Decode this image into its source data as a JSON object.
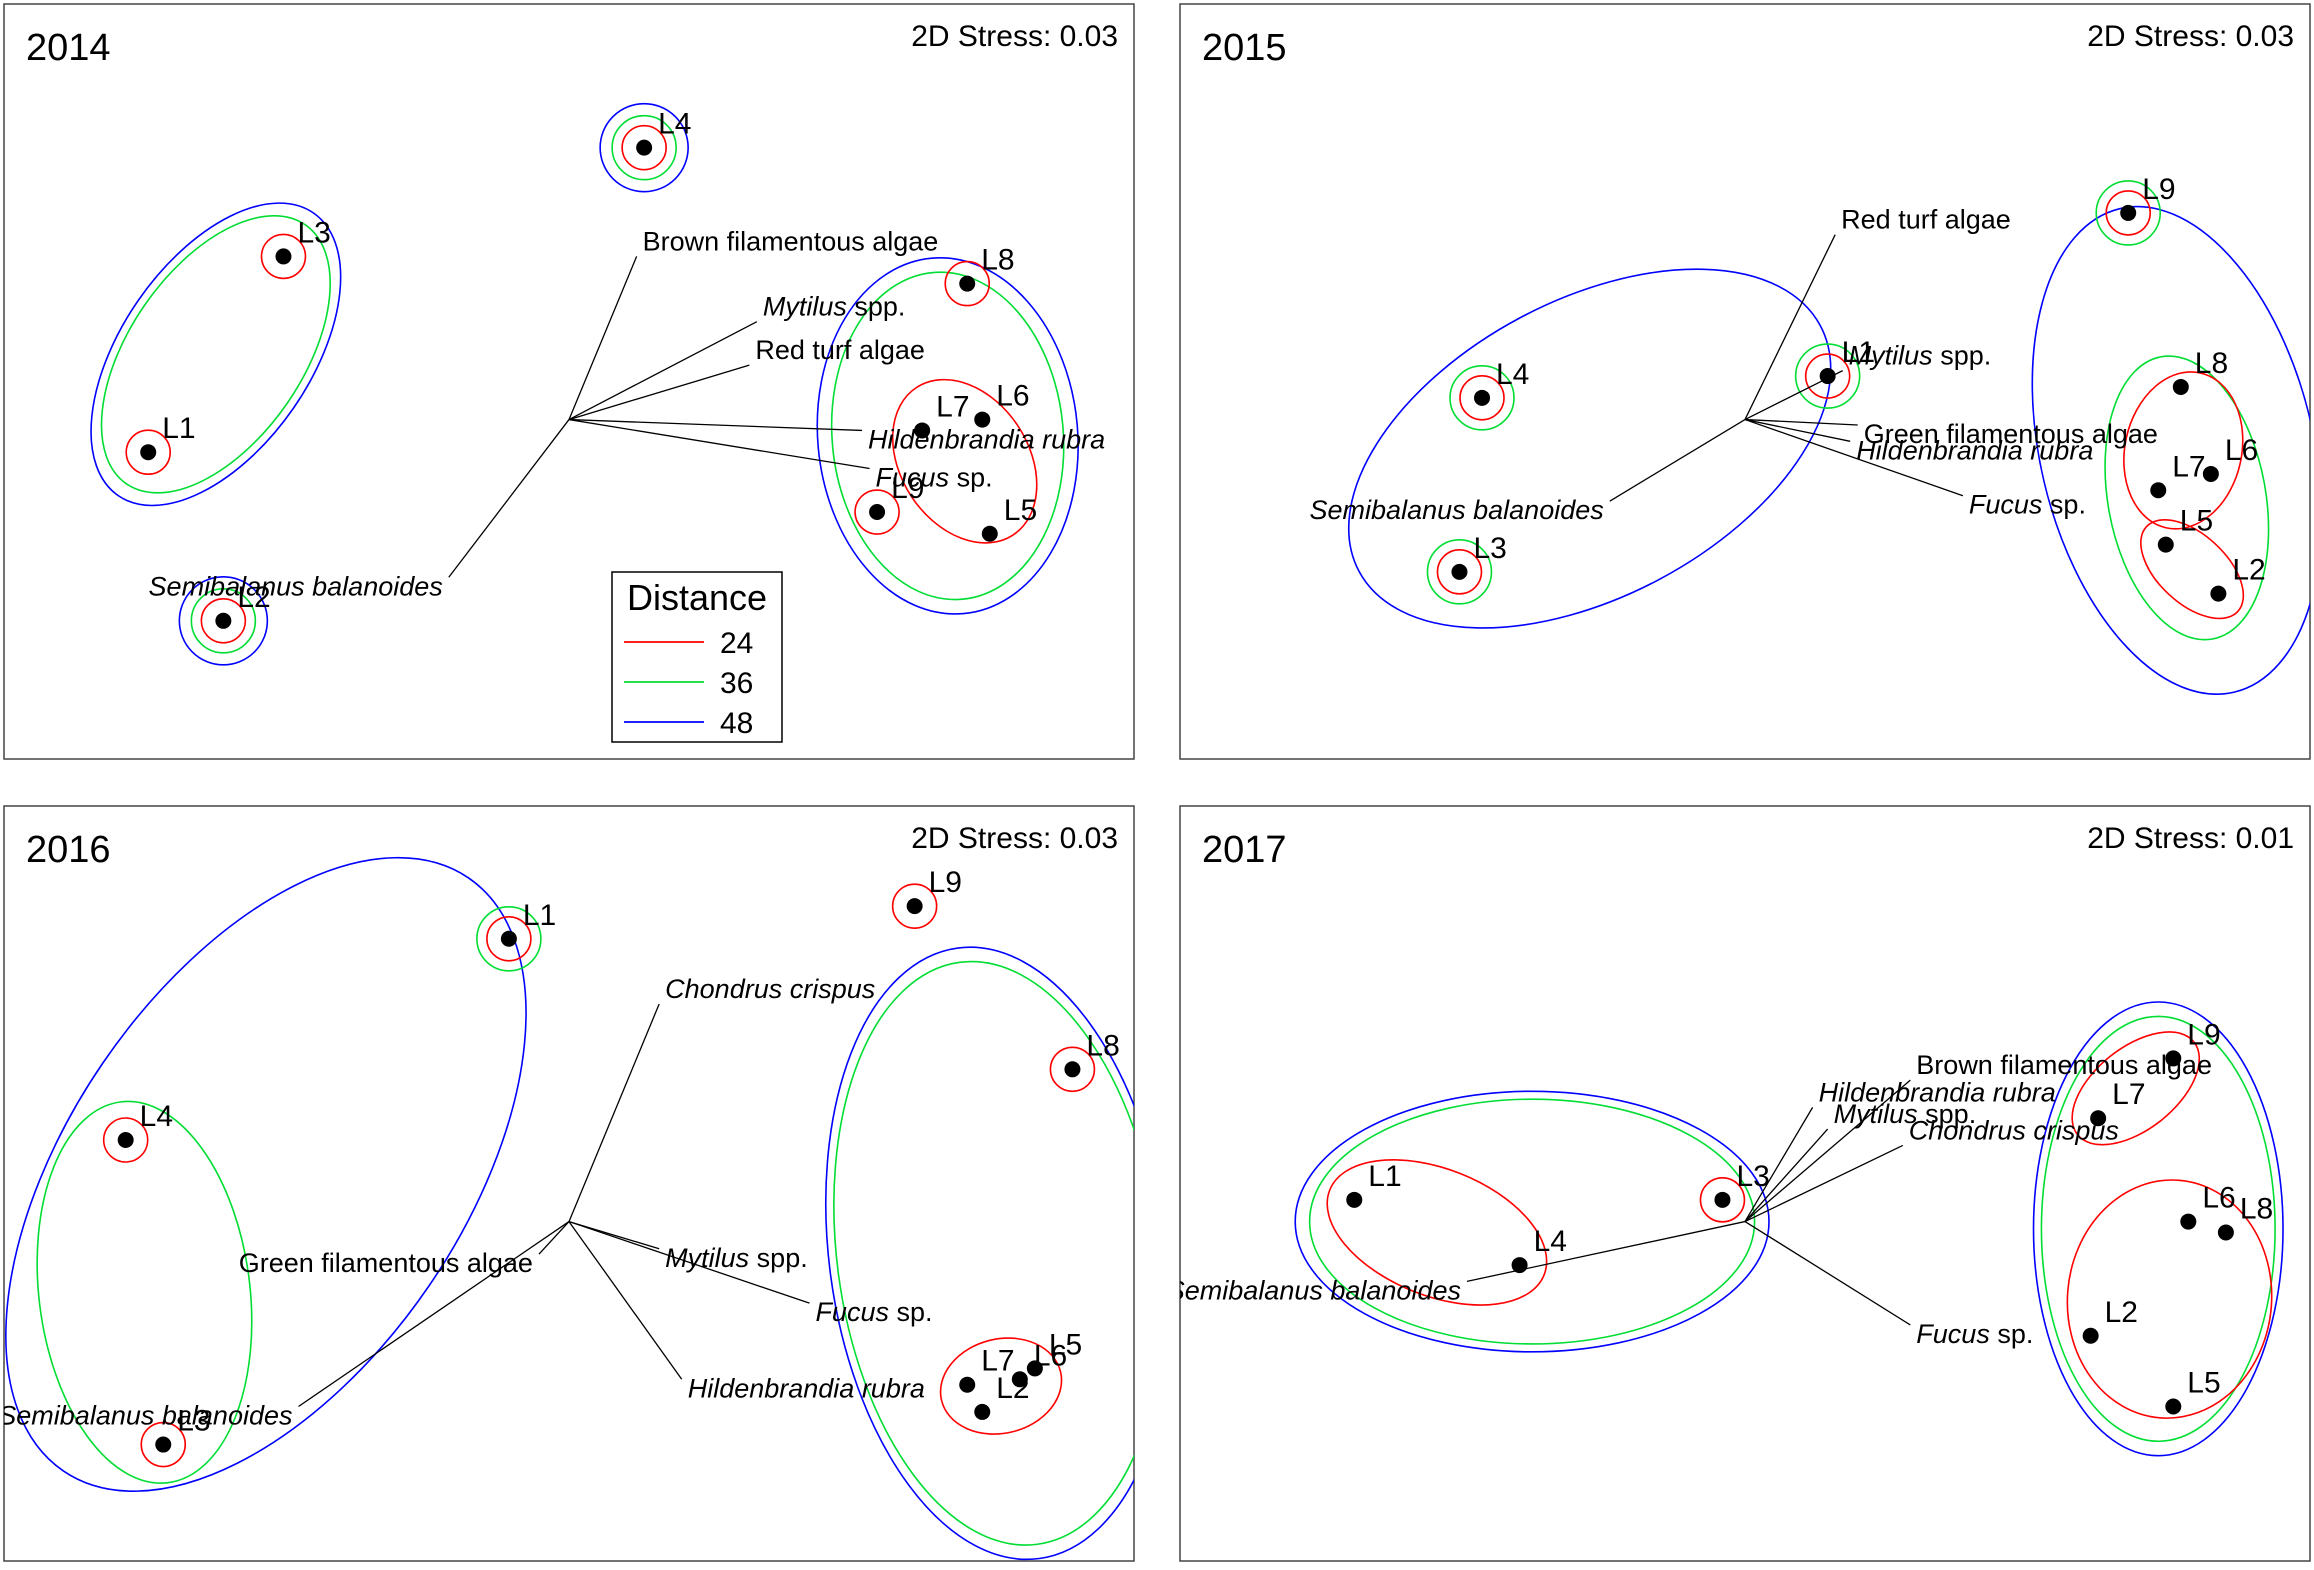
{
  "colors": {
    "d24": "#ff0000",
    "d36": "#00dd33",
    "d48": "#0000ff",
    "frame": "#444444",
    "vector": "#000000",
    "point": "#000000"
  },
  "legend": {
    "title": "Distance",
    "entries": [
      {
        "label": "24",
        "color": "#ff0000"
      },
      {
        "label": "36",
        "color": "#00dd33"
      },
      {
        "label": "48",
        "color": "#0000ff"
      }
    ]
  },
  "chart_data": [
    {
      "type": "scatter",
      "title": "2014",
      "stress_text": "2D Stress: 0.03",
      "points": [
        {
          "label": "L1",
          "x": -2.8,
          "y": -0.3
        },
        {
          "label": "L2",
          "x": -2.3,
          "y": -1.85
        },
        {
          "label": "L3",
          "x": -1.9,
          "y": 1.5
        },
        {
          "label": "L4",
          "x": 0.5,
          "y": 2.5
        },
        {
          "label": "L5",
          "x": 2.8,
          "y": -1.05
        },
        {
          "label": "L6",
          "x": 2.75,
          "y": 0.0
        },
        {
          "label": "L7",
          "x": 2.35,
          "y": -0.1
        },
        {
          "label": "L8",
          "x": 2.65,
          "y": 1.25
        },
        {
          "label": "L9",
          "x": 2.05,
          "y": -0.85
        }
      ],
      "vectors": [
        {
          "label": "Brown filamentous algae",
          "x": 0.45,
          "y": 1.5
        },
        {
          "label": "Mytilus spp.",
          "italic": "Mytilus",
          "rest": " spp.",
          "x": 1.25,
          "y": 0.9
        },
        {
          "label": "Red turf algae",
          "x": 1.2,
          "y": 0.5
        },
        {
          "label": "Hildenbrandia rubra",
          "italic": "Hildenbrandia rubra",
          "rest": "",
          "x": 1.95,
          "y": -0.1
        },
        {
          "label": "Fucus sp.",
          "italic": "Fucus",
          "rest": " sp.",
          "x": 2.0,
          "y": -0.45
        },
        {
          "label": "Semibalanus balanoides",
          "italic": "Semibalanus balanoides",
          "rest": "",
          "x": -0.8,
          "y": -1.45
        }
      ],
      "contours": {
        "d24": [
          [
            "L1"
          ],
          [
            "L2"
          ],
          [
            "L3"
          ],
          [
            "L4"
          ],
          [
            "L8"
          ],
          [
            "L9"
          ],
          [
            "L5",
            "L6",
            "L7"
          ]
        ],
        "d36": [
          [
            "L1",
            "L3"
          ],
          [
            "L2"
          ],
          [
            "L4"
          ],
          [
            "L5",
            "L6",
            "L7",
            "L8",
            "L9"
          ]
        ],
        "d48": [
          [
            "L1",
            "L3"
          ],
          [
            "L2"
          ],
          [
            "L4"
          ],
          [
            "L5",
            "L6",
            "L7",
            "L8",
            "L9"
          ]
        ]
      },
      "show_legend": true
    },
    {
      "type": "scatter",
      "title": "2015",
      "stress_text": "2D Stress: 0.03",
      "points": [
        {
          "label": "L1",
          "x": 0.55,
          "y": 0.4
        },
        {
          "label": "L2",
          "x": 3.15,
          "y": -1.6
        },
        {
          "label": "L3",
          "x": -1.9,
          "y": -1.4
        },
        {
          "label": "L4",
          "x": -1.75,
          "y": 0.2
        },
        {
          "label": "L5",
          "x": 2.8,
          "y": -1.15
        },
        {
          "label": "L6",
          "x": 3.1,
          "y": -0.5
        },
        {
          "label": "L7",
          "x": 2.75,
          "y": -0.65
        },
        {
          "label": "L8",
          "x": 2.9,
          "y": 0.3
        },
        {
          "label": "L9",
          "x": 2.55,
          "y": 1.9
        }
      ],
      "vectors": [
        {
          "label": "Red turf algae",
          "x": 0.6,
          "y": 1.7
        },
        {
          "label": "Mytilus spp.",
          "italic": "Mytilus",
          "rest": " spp.",
          "x": 0.65,
          "y": 0.45
        },
        {
          "label": "Green filamentous algae",
          "x": 0.75,
          "y": -0.05
        },
        {
          "label": "Hildenbrandia rubra",
          "italic": "Hildenbrandia rubra",
          "rest": "",
          "x": 0.7,
          "y": -0.2
        },
        {
          "label": "Fucus sp.",
          "italic": "Fucus",
          "rest": " sp.",
          "x": 1.45,
          "y": -0.7
        },
        {
          "label": "Semibalanus balanoides",
          "italic": "Semibalanus balanoides",
          "rest": "",
          "x": -0.9,
          "y": -0.75
        }
      ],
      "contours": {
        "d24": [
          [
            "L1"
          ],
          [
            "L3"
          ],
          [
            "L4"
          ],
          [
            "L9"
          ],
          [
            "L6",
            "L7",
            "L8"
          ],
          [
            "L2",
            "L5"
          ]
        ],
        "d36": [
          [
            "L1"
          ],
          [
            "L3"
          ],
          [
            "L4"
          ],
          [
            "L9"
          ],
          [
            "L2",
            "L5",
            "L6",
            "L7",
            "L8"
          ]
        ],
        "d48": [
          [
            "L1",
            "L3",
            "L4"
          ],
          [
            "L2",
            "L5",
            "L6",
            "L7",
            "L8",
            "L9"
          ]
        ]
      },
      "show_legend": false
    },
    {
      "type": "scatter",
      "title": "2016",
      "stress_text": "2D Stress: 0.03",
      "points": [
        {
          "label": "L1",
          "x": -0.4,
          "y": 2.6
        },
        {
          "label": "L2",
          "x": 2.75,
          "y": -1.75
        },
        {
          "label": "L3",
          "x": -2.7,
          "y": -2.05
        },
        {
          "label": "L4",
          "x": -2.95,
          "y": 0.75
        },
        {
          "label": "L5",
          "x": 3.1,
          "y": -1.35
        },
        {
          "label": "L6",
          "x": 3.0,
          "y": -1.45
        },
        {
          "label": "L7",
          "x": 2.65,
          "y": -1.5
        },
        {
          "label": "L8",
          "x": 3.35,
          "y": 1.4
        },
        {
          "label": "L9",
          "x": 2.3,
          "y": 2.9
        }
      ],
      "vectors": [
        {
          "label": "Chondrus crispus",
          "italic": "Chondrus crispus",
          "rest": "",
          "x": 0.6,
          "y": 2.0
        },
        {
          "label": "Green filamentous algae",
          "x": -0.2,
          "y": -0.3
        },
        {
          "label": "Mytilus spp.",
          "italic": "Mytilus",
          "rest": " spp.",
          "x": 0.6,
          "y": -0.25
        },
        {
          "label": "Fucus sp.",
          "italic": "Fucus",
          "rest": " sp.",
          "x": 1.6,
          "y": -0.75
        },
        {
          "label": "Hildenbrandia rubra",
          "italic": "Hildenbrandia rubra",
          "rest": "",
          "x": 0.75,
          "y": -1.45
        },
        {
          "label": "Semibalanus balanoides",
          "italic": "Semibalanus balanoides",
          "rest": "",
          "x": -1.8,
          "y": -1.7
        }
      ],
      "contours": {
        "d24": [
          [
            "L1"
          ],
          [
            "L3"
          ],
          [
            "L4"
          ],
          [
            "L8"
          ],
          [
            "L9"
          ],
          [
            "L2",
            "L5",
            "L6",
            "L7"
          ]
        ],
        "d36": [
          [
            "L1"
          ],
          [
            "L3",
            "L4"
          ],
          [
            "L2",
            "L5",
            "L6",
            "L7",
            "L8",
            "L9"
          ]
        ],
        "d48": [
          [
            "L1",
            "L3",
            "L4"
          ],
          [
            "L2",
            "L5",
            "L6",
            "L7",
            "L8",
            "L9"
          ]
        ]
      },
      "show_legend": false
    },
    {
      "type": "scatter",
      "title": "2017",
      "stress_text": "2D Stress: 0.01",
      "points": [
        {
          "label": "L1",
          "x": -2.6,
          "y": 0.2
        },
        {
          "label": "L2",
          "x": 2.3,
          "y": -1.05
        },
        {
          "label": "L3",
          "x": -0.15,
          "y": 0.2
        },
        {
          "label": "L4",
          "x": -1.5,
          "y": -0.4
        },
        {
          "label": "L5",
          "x": 2.85,
          "y": -1.7
        },
        {
          "label": "L6",
          "x": 2.95,
          "y": 0.0
        },
        {
          "label": "L7",
          "x": 2.35,
          "y": 0.95
        },
        {
          "label": "L8",
          "x": 3.2,
          "y": -0.1
        },
        {
          "label": "L9",
          "x": 2.85,
          "y": 1.5
        }
      ],
      "vectors": [
        {
          "label": "Hildenbrandia rubra",
          "italic": "Hildenbrandia rubra",
          "rest": "",
          "x": 0.45,
          "y": 1.05
        },
        {
          "label": "Mytilus spp.",
          "italic": "Mytilus",
          "rest": " spp.",
          "x": 0.55,
          "y": 0.85
        },
        {
          "label": "Brown filamentous algae",
          "x": 1.1,
          "y": 1.3
        },
        {
          "label": "Chondrus crispus",
          "italic": "Chondrus crispus",
          "rest": "",
          "x": 1.05,
          "y": 0.7
        },
        {
          "label": "Fucus sp.",
          "italic": "Fucus",
          "rest": " sp.",
          "x": 1.1,
          "y": -0.95
        },
        {
          "label": "Semibalanus balanoides",
          "italic": "Semibalanus balanoides",
          "rest": "",
          "x": -1.85,
          "y": -0.55
        }
      ],
      "contours": {
        "d24": [
          [
            "L1",
            "L4"
          ],
          [
            "L3"
          ],
          [
            "L7",
            "L9"
          ],
          [
            "L2",
            "L5",
            "L6",
            "L8"
          ]
        ],
        "d36": [
          [
            "L1",
            "L3",
            "L4"
          ],
          [
            "L2",
            "L5",
            "L6",
            "L7",
            "L8",
            "L9"
          ]
        ],
        "d48": [
          [
            "L1",
            "L3",
            "L4"
          ],
          [
            "L2",
            "L5",
            "L6",
            "L7",
            "L8",
            "L9"
          ]
        ]
      },
      "show_legend": false
    }
  ]
}
